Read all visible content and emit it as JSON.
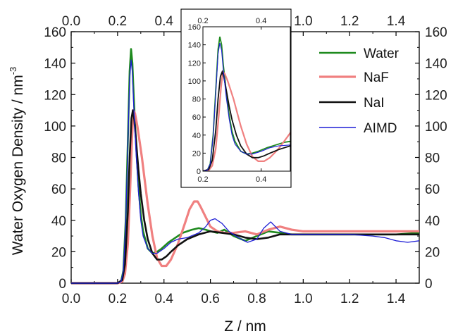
{
  "chart_data": {
    "type": "line",
    "title": "",
    "xlabel": "Z / nm",
    "ylabel_main": "Water Oxygen Density / nm",
    "ylabel_superscript": "-3",
    "xlim": [
      0.0,
      1.5
    ],
    "ylim": [
      0,
      160
    ],
    "x_ticks": [
      "0.0",
      "0.2",
      "0.4",
      "0.6",
      "0.8",
      "1.0",
      "1.2",
      "1.4"
    ],
    "y_ticks": [
      "0",
      "20",
      "40",
      "60",
      "80",
      "100",
      "120",
      "140",
      "160"
    ],
    "mirrored_axes": "top and right axes repeat the tick labels",
    "grid": false,
    "legend_position": "top-right",
    "series": [
      {
        "name": "Water",
        "color": "#1e8a1e",
        "x": [
          0.0,
          0.2,
          0.215,
          0.225,
          0.235,
          0.245,
          0.252,
          0.258,
          0.264,
          0.27,
          0.28,
          0.29,
          0.3,
          0.31,
          0.33,
          0.35,
          0.37,
          0.39,
          0.42,
          0.45,
          0.48,
          0.52,
          0.55,
          0.58,
          0.6,
          0.63,
          0.66,
          0.7,
          0.75,
          0.8,
          0.85,
          0.9,
          0.95,
          1.0,
          1.1,
          1.2,
          1.3,
          1.4,
          1.5
        ],
        "y": [
          0,
          0,
          1,
          8,
          40,
          95,
          135,
          149,
          140,
          118,
          88,
          62,
          44,
          33,
          22,
          19,
          20,
          22,
          26,
          29,
          32,
          34,
          35,
          34,
          33,
          32,
          34,
          30,
          27,
          30,
          33,
          32,
          31,
          31,
          31,
          31,
          31,
          31,
          32
        ]
      },
      {
        "name": "NaF",
        "color": "#f08080",
        "x": [
          0.0,
          0.2,
          0.22,
          0.232,
          0.244,
          0.254,
          0.262,
          0.268,
          0.275,
          0.285,
          0.295,
          0.305,
          0.315,
          0.33,
          0.35,
          0.37,
          0.39,
          0.41,
          0.43,
          0.46,
          0.49,
          0.51,
          0.53,
          0.545,
          0.56,
          0.58,
          0.6,
          0.63,
          0.66,
          0.7,
          0.75,
          0.8,
          0.85,
          0.9,
          0.95,
          1.0,
          1.2,
          1.4,
          1.5
        ],
        "y": [
          0,
          0,
          1,
          6,
          25,
          60,
          92,
          110,
          108,
          100,
          90,
          80,
          68,
          50,
          30,
          16,
          11,
          11,
          15,
          25,
          38,
          47,
          52,
          52,
          48,
          42,
          36,
          33,
          32,
          32,
          33,
          31,
          34,
          36,
          34,
          33,
          33,
          33,
          33
        ]
      },
      {
        "name": "NaI",
        "color": "#111111",
        "x": [
          0.0,
          0.2,
          0.22,
          0.232,
          0.244,
          0.252,
          0.26,
          0.266,
          0.272,
          0.28,
          0.29,
          0.3,
          0.315,
          0.33,
          0.35,
          0.37,
          0.39,
          0.41,
          0.43,
          0.46,
          0.5,
          0.55,
          0.6,
          0.65,
          0.7,
          0.75,
          0.8,
          0.85,
          0.9,
          1.0,
          1.2,
          1.4,
          1.5
        ],
        "y": [
          0,
          0,
          2,
          12,
          45,
          80,
          105,
          110,
          104,
          90,
          72,
          57,
          40,
          28,
          19,
          15,
          15,
          17,
          20,
          24,
          28,
          31,
          33,
          32,
          31,
          29,
          28,
          29,
          31,
          31,
          31,
          31,
          31
        ]
      },
      {
        "name": "AIMD",
        "color": "#1f1fd6",
        "x": [
          0.0,
          0.2,
          0.215,
          0.225,
          0.235,
          0.245,
          0.252,
          0.258,
          0.264,
          0.27,
          0.28,
          0.29,
          0.3,
          0.31,
          0.33,
          0.35,
          0.37,
          0.4,
          0.43,
          0.46,
          0.5,
          0.55,
          0.58,
          0.6,
          0.62,
          0.65,
          0.68,
          0.72,
          0.76,
          0.8,
          0.83,
          0.86,
          0.9,
          0.95,
          1.0,
          1.1,
          1.2,
          1.3,
          1.35,
          1.4,
          1.45,
          1.5
        ],
        "y": [
          0,
          0,
          1,
          8,
          38,
          92,
          130,
          142,
          134,
          112,
          82,
          58,
          40,
          30,
          22,
          19,
          19,
          22,
          26,
          28,
          29,
          32,
          36,
          40,
          41,
          38,
          33,
          29,
          26,
          28,
          35,
          39,
          33,
          31,
          31,
          31,
          31,
          30,
          29,
          27,
          26,
          27
        ]
      }
    ],
    "inset": {
      "xlim": [
        0.2,
        0.5
      ],
      "ylim": [
        0,
        160
      ],
      "x_ticks": [
        "0.2",
        "0.4"
      ],
      "top_x_ticks": [
        "0.2",
        "0.4"
      ],
      "y_ticks": [
        "0",
        "20",
        "40",
        "60",
        "80",
        "100",
        "120",
        "140",
        "160"
      ]
    }
  }
}
